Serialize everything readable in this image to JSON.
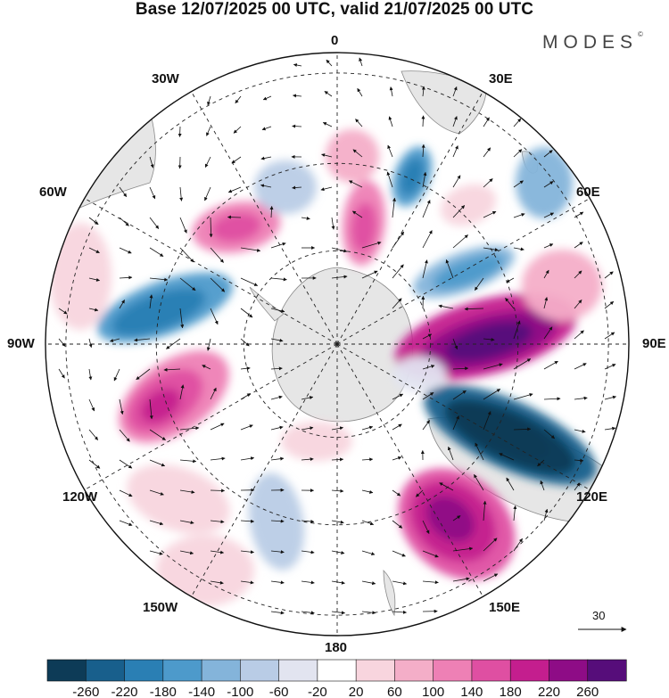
{
  "header": {
    "title": "Base 12/07/2025 00 UTC, valid 21/07/2025 00 UTC",
    "brand": "MODES",
    "brand_mark": "©"
  },
  "map": {
    "projection": "south polar stereographic",
    "longitude_labels": [
      "0",
      "30E",
      "60E",
      "90E",
      "120E",
      "150E",
      "180",
      "150W",
      "120W",
      "90W",
      "60W",
      "30W"
    ],
    "colors": {
      "land": "#e8e8e8",
      "coast": "#707070",
      "grid": "#222222",
      "arrow": "#111111"
    }
  },
  "colorbar": {
    "tick_labels": [
      "-260",
      "-220",
      "-180",
      "-140",
      "-100",
      "-60",
      "-20",
      "20",
      "60",
      "100",
      "140",
      "180",
      "220",
      "260"
    ],
    "colors": [
      "#0d3b57",
      "#185f8c",
      "#2a7fb4",
      "#4d9acb",
      "#84b4da",
      "#b9cce6",
      "#e2e4f0",
      "#ffffff",
      "#f8d5de",
      "#f4aec8",
      "#ee80b5",
      "#df4fa2",
      "#c41e8e",
      "#8e0c86",
      "#560d7a"
    ]
  },
  "reference_vector": {
    "label": "30"
  }
}
